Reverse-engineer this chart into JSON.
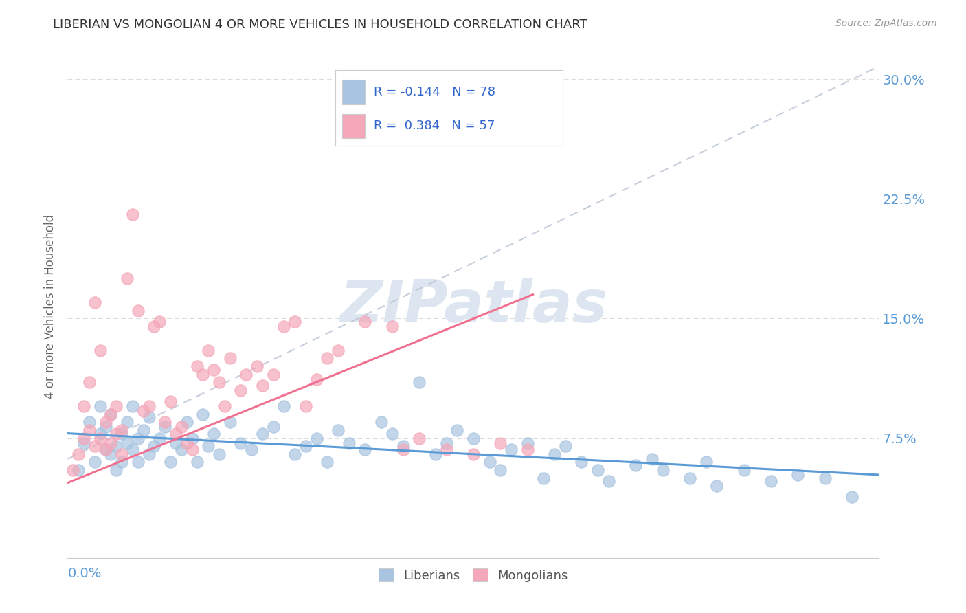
{
  "title": "LIBERIAN VS MONGOLIAN 4 OR MORE VEHICLES IN HOUSEHOLD CORRELATION CHART",
  "source": "Source: ZipAtlas.com",
  "ylabel": "4 or more Vehicles in Household",
  "yticks": [
    0.0,
    0.075,
    0.15,
    0.225,
    0.3
  ],
  "ytick_labels": [
    "",
    "7.5%",
    "15.0%",
    "22.5%",
    "30.0%"
  ],
  "xlim": [
    0.0,
    0.15
  ],
  "ylim": [
    0.0,
    0.315
  ],
  "liberian_color": "#a8c4e0",
  "mongolian_color": "#f4a7b9",
  "liberian_R": -0.144,
  "liberian_N": 78,
  "mongolian_R": 0.384,
  "mongolian_N": 57,
  "trendline_color": "#c0c8d8",
  "liberian_line_color": "#5b9bd5",
  "mongolian_line_color": "#f07090",
  "watermark_color": "#dde6f0",
  "liberian_scatter": [
    [
      0.002,
      0.055
    ],
    [
      0.003,
      0.072
    ],
    [
      0.004,
      0.085
    ],
    [
      0.005,
      0.06
    ],
    [
      0.006,
      0.095
    ],
    [
      0.006,
      0.078
    ],
    [
      0.007,
      0.068
    ],
    [
      0.007,
      0.082
    ],
    [
      0.008,
      0.065
    ],
    [
      0.008,
      0.09
    ],
    [
      0.009,
      0.07
    ],
    [
      0.009,
      0.055
    ],
    [
      0.01,
      0.078
    ],
    [
      0.01,
      0.06
    ],
    [
      0.011,
      0.085
    ],
    [
      0.011,
      0.072
    ],
    [
      0.012,
      0.068
    ],
    [
      0.012,
      0.095
    ],
    [
      0.013,
      0.075
    ],
    [
      0.013,
      0.06
    ],
    [
      0.014,
      0.08
    ],
    [
      0.015,
      0.065
    ],
    [
      0.015,
      0.088
    ],
    [
      0.016,
      0.07
    ],
    [
      0.017,
      0.075
    ],
    [
      0.018,
      0.082
    ],
    [
      0.019,
      0.06
    ],
    [
      0.02,
      0.072
    ],
    [
      0.021,
      0.068
    ],
    [
      0.022,
      0.085
    ],
    [
      0.023,
      0.075
    ],
    [
      0.024,
      0.06
    ],
    [
      0.025,
      0.09
    ],
    [
      0.026,
      0.07
    ],
    [
      0.027,
      0.078
    ],
    [
      0.028,
      0.065
    ],
    [
      0.03,
      0.085
    ],
    [
      0.032,
      0.072
    ],
    [
      0.034,
      0.068
    ],
    [
      0.036,
      0.078
    ],
    [
      0.038,
      0.082
    ],
    [
      0.04,
      0.095
    ],
    [
      0.042,
      0.065
    ],
    [
      0.044,
      0.07
    ],
    [
      0.046,
      0.075
    ],
    [
      0.048,
      0.06
    ],
    [
      0.05,
      0.08
    ],
    [
      0.052,
      0.072
    ],
    [
      0.055,
      0.068
    ],
    [
      0.058,
      0.085
    ],
    [
      0.06,
      0.078
    ],
    [
      0.062,
      0.07
    ],
    [
      0.065,
      0.11
    ],
    [
      0.068,
      0.065
    ],
    [
      0.07,
      0.072
    ],
    [
      0.072,
      0.08
    ],
    [
      0.075,
      0.075
    ],
    [
      0.078,
      0.06
    ],
    [
      0.08,
      0.055
    ],
    [
      0.082,
      0.068
    ],
    [
      0.085,
      0.072
    ],
    [
      0.088,
      0.05
    ],
    [
      0.09,
      0.065
    ],
    [
      0.092,
      0.07
    ],
    [
      0.095,
      0.06
    ],
    [
      0.098,
      0.055
    ],
    [
      0.1,
      0.048
    ],
    [
      0.105,
      0.058
    ],
    [
      0.108,
      0.062
    ],
    [
      0.11,
      0.055
    ],
    [
      0.115,
      0.05
    ],
    [
      0.118,
      0.06
    ],
    [
      0.12,
      0.045
    ],
    [
      0.125,
      0.055
    ],
    [
      0.13,
      0.048
    ],
    [
      0.135,
      0.052
    ],
    [
      0.14,
      0.05
    ],
    [
      0.145,
      0.038
    ]
  ],
  "mongolian_scatter": [
    [
      0.001,
      0.055
    ],
    [
      0.002,
      0.065
    ],
    [
      0.003,
      0.095
    ],
    [
      0.003,
      0.075
    ],
    [
      0.004,
      0.08
    ],
    [
      0.004,
      0.11
    ],
    [
      0.005,
      0.07
    ],
    [
      0.005,
      0.16
    ],
    [
      0.006,
      0.075
    ],
    [
      0.006,
      0.13
    ],
    [
      0.007,
      0.068
    ],
    [
      0.007,
      0.085
    ],
    [
      0.008,
      0.09
    ],
    [
      0.008,
      0.072
    ],
    [
      0.009,
      0.095
    ],
    [
      0.009,
      0.078
    ],
    [
      0.01,
      0.08
    ],
    [
      0.01,
      0.065
    ],
    [
      0.011,
      0.175
    ],
    [
      0.012,
      0.215
    ],
    [
      0.013,
      0.155
    ],
    [
      0.014,
      0.092
    ],
    [
      0.015,
      0.095
    ],
    [
      0.016,
      0.145
    ],
    [
      0.017,
      0.148
    ],
    [
      0.018,
      0.085
    ],
    [
      0.019,
      0.098
    ],
    [
      0.02,
      0.078
    ],
    [
      0.021,
      0.082
    ],
    [
      0.022,
      0.072
    ],
    [
      0.023,
      0.068
    ],
    [
      0.024,
      0.12
    ],
    [
      0.025,
      0.115
    ],
    [
      0.026,
      0.13
    ],
    [
      0.027,
      0.118
    ],
    [
      0.028,
      0.11
    ],
    [
      0.029,
      0.095
    ],
    [
      0.03,
      0.125
    ],
    [
      0.032,
      0.105
    ],
    [
      0.033,
      0.115
    ],
    [
      0.035,
      0.12
    ],
    [
      0.036,
      0.108
    ],
    [
      0.038,
      0.115
    ],
    [
      0.04,
      0.145
    ],
    [
      0.042,
      0.148
    ],
    [
      0.044,
      0.095
    ],
    [
      0.046,
      0.112
    ],
    [
      0.048,
      0.125
    ],
    [
      0.05,
      0.13
    ],
    [
      0.055,
      0.148
    ],
    [
      0.06,
      0.145
    ],
    [
      0.062,
      0.068
    ],
    [
      0.065,
      0.075
    ],
    [
      0.07,
      0.068
    ],
    [
      0.075,
      0.065
    ],
    [
      0.08,
      0.072
    ],
    [
      0.085,
      0.068
    ]
  ]
}
